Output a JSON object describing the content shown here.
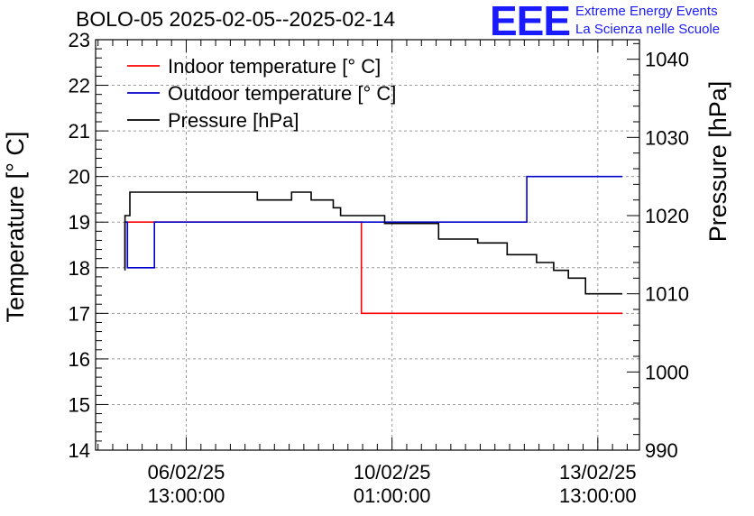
{
  "title": "BOLO-05 2025-02-05--2025-02-14",
  "logo": {
    "mark": "EEE",
    "line1": "Extreme Energy Events",
    "line2": "La Scienza nelle Scuole",
    "color": "#1a1aff"
  },
  "chart_data": {
    "type": "line",
    "title": "BOLO-05 2025-02-05--2025-02-14",
    "xlabel": "",
    "ylabel": "Temperature [° C]",
    "y2label": "Pressure [hPa]",
    "x_unit": "hours since 2025-02-05 00:00",
    "xlim": [
      0,
      222
    ],
    "ylim": [
      14,
      23
    ],
    "y2lim": [
      990,
      1042.5
    ],
    "grid": true,
    "legend_position": "top-left",
    "x_ticks": [
      {
        "x": 37,
        "line1": "06/02/25",
        "line2": "13:00:00"
      },
      {
        "x": 121,
        "line1": "10/02/25",
        "line2": "01:00:00"
      },
      {
        "x": 205,
        "line1": "13/02/25",
        "line2": "13:00:00"
      }
    ],
    "y_ticks": [
      "14",
      "15",
      "16",
      "17",
      "18",
      "19",
      "20",
      "21",
      "22",
      "23"
    ],
    "y2_ticks": [
      "990",
      "1000",
      "1010",
      "1020",
      "1030",
      "1040"
    ],
    "series": [
      {
        "name": "Indoor temperature [° C]",
        "axis": "left",
        "color": "#ff0000",
        "x": [
          12,
          12,
          24,
          24,
          108.5,
          108.5,
          215
        ],
        "y": [
          18,
          19,
          19,
          19,
          19,
          17,
          17
        ]
      },
      {
        "name": "Outdoor temperature [° C]",
        "axis": "left",
        "color": "#0000cc",
        "x": [
          12,
          12,
          13,
          13,
          24,
          24,
          176,
          176,
          215
        ],
        "y": [
          18,
          19,
          19,
          18,
          18,
          19,
          19,
          20,
          20
        ]
      },
      {
        "name": "Pressure [hPa]",
        "axis": "right",
        "color": "#000000",
        "x": [
          12,
          12,
          14,
          14,
          66,
          66,
          80,
          80,
          88,
          88,
          97,
          97,
          100,
          100,
          118,
          118,
          140,
          140,
          156,
          156,
          168,
          168,
          180,
          180,
          187,
          187,
          193,
          193,
          200,
          200,
          209,
          209,
          215
        ],
        "y": [
          1013,
          1020,
          1020,
          1023,
          1023,
          1022,
          1022,
          1023,
          1023,
          1022,
          1022,
          1021,
          1021,
          1020,
          1020,
          1019,
          1019,
          1017,
          1017,
          1016.5,
          1016.5,
          1015,
          1015,
          1014,
          1014,
          1013,
          1013,
          1012,
          1012,
          1010,
          1010,
          1010,
          1010
        ]
      }
    ]
  }
}
